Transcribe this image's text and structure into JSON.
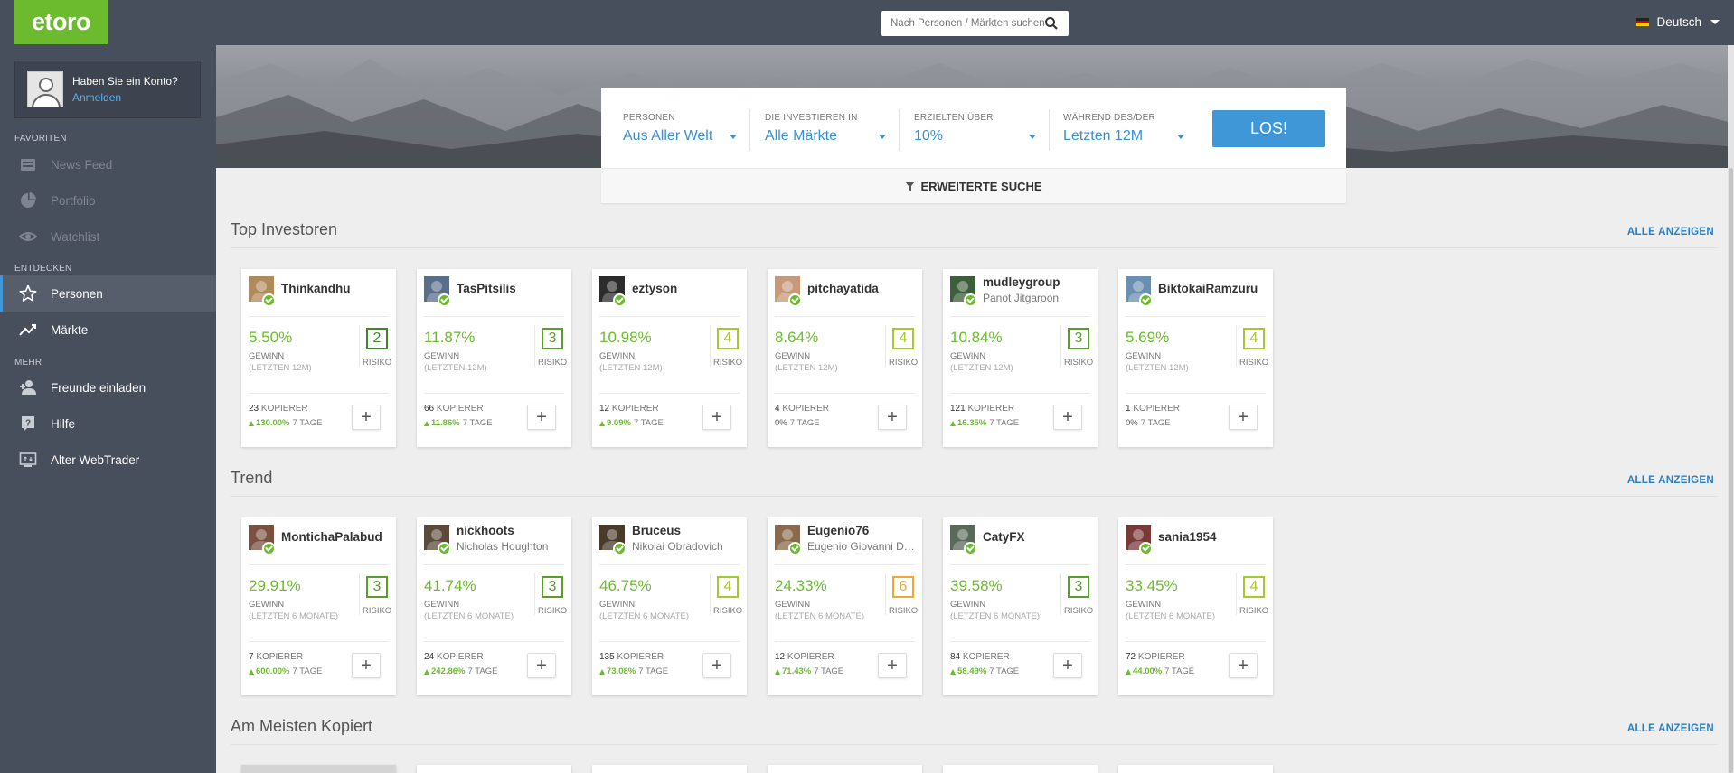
{
  "brand": {
    "logo": "etoro",
    "accent": "#6cbb2f",
    "primary": "#3f97d8"
  },
  "sidebar": {
    "account_question": "Haben Sie ein Konto?",
    "login_link": "Anmelden",
    "favorites_heading": "FAVORITEN",
    "favorites": [
      {
        "label": "News Feed",
        "icon": "news-icon"
      },
      {
        "label": "Portfolio",
        "icon": "pie-chart-icon"
      },
      {
        "label": "Watchlist",
        "icon": "eye-icon"
      }
    ],
    "discover_heading": "ENTDECKEN",
    "discover": [
      {
        "label": "Personen",
        "icon": "star-icon",
        "active": true
      },
      {
        "label": "Märkte",
        "icon": "trend-chart-icon"
      }
    ],
    "more_heading": "MEHR",
    "more": [
      {
        "label": "Freunde einladen",
        "icon": "add-user-icon"
      },
      {
        "label": "Hilfe",
        "icon": "help-icon"
      },
      {
        "label": "Alter WebTrader",
        "icon": "monitor-icon"
      }
    ]
  },
  "topbar": {
    "search_placeholder": "Nach Personen / Märkten suchen",
    "language": "Deutsch"
  },
  "filter": {
    "people_label": "PERSONEN",
    "people_value": "Aus Aller Welt",
    "invest_label": "DIE INVESTIEREN IN",
    "invest_value": "Alle Märkte",
    "gain_label": "ERZIELTEN ÜBER",
    "gain_value": "10%",
    "period_label": "WÄHREND DES/DER",
    "period_value": "Letzten 12M",
    "go_button": "LOS!",
    "advanced": "ERWEITERTE SUCHE"
  },
  "show_all": "ALLE ANZEIGEN",
  "labels": {
    "gain": "GEWINN",
    "risk": "RISIKO",
    "copiers": "KOPIERER",
    "days": "7 TAGE",
    "period_12m": "(LETZTEN 12M)",
    "period_6m": "(LETZTEN 6 MONATE)"
  },
  "sections": [
    {
      "title": "Top Investoren",
      "investors": [
        {
          "username": "Thinkandhu",
          "fullname": "",
          "gain": "5.50%",
          "risk": "2",
          "copiers": "23",
          "trend": "130.00%",
          "up": true
        },
        {
          "username": "TasPitsilis",
          "fullname": "",
          "gain": "11.87%",
          "risk": "3",
          "copiers": "66",
          "trend": "11.86%",
          "up": true
        },
        {
          "username": "eztyson",
          "fullname": "",
          "gain": "10.98%",
          "risk": "4",
          "copiers": "12",
          "trend": "9.09%",
          "up": true
        },
        {
          "username": "pitchayatida",
          "fullname": "",
          "gain": "8.64%",
          "risk": "4",
          "copiers": "4",
          "trend": "0%",
          "up": false
        },
        {
          "username": "mudleygroup",
          "fullname": "Panot Jitgaroon",
          "gain": "10.84%",
          "risk": "3",
          "copiers": "121",
          "trend": "16.35%",
          "up": true
        },
        {
          "username": "BiktokaiRamzuru",
          "fullname": "",
          "gain": "5.69%",
          "risk": "4",
          "copiers": "1",
          "trend": "0%",
          "up": false
        }
      ]
    },
    {
      "title": "Trend",
      "investors": [
        {
          "username": "MontichaPalabud",
          "fullname": "",
          "gain": "29.91%",
          "risk": "3",
          "copiers": "7",
          "trend": "600.00%",
          "up": true
        },
        {
          "username": "nickhoots",
          "fullname": "Nicholas Houghton",
          "gain": "41.74%",
          "risk": "3",
          "copiers": "24",
          "trend": "242.86%",
          "up": true
        },
        {
          "username": "Bruceus",
          "fullname": "Nikolai Obradovich",
          "gain": "46.75%",
          "risk": "4",
          "copiers": "135",
          "trend": "73.08%",
          "up": true
        },
        {
          "username": "Eugenio76",
          "fullname": "Eugenio Giovanni Di ...",
          "gain": "24.33%",
          "risk": "6",
          "copiers": "12",
          "trend": "71.43%",
          "up": true
        },
        {
          "username": "CatyFX",
          "fullname": "",
          "gain": "39.58%",
          "risk": "3",
          "copiers": "84",
          "trend": "58.49%",
          "up": true
        },
        {
          "username": "sania1954",
          "fullname": "",
          "gain": "33.45%",
          "risk": "4",
          "copiers": "72",
          "trend": "44.00%",
          "up": true
        }
      ]
    },
    {
      "title": "Am Meisten Kopiert"
    }
  ],
  "risk_colors": {
    "2": "#3e8a26",
    "3": "#5a9e2a",
    "4": "#a8c92a",
    "6": "#f0a830"
  }
}
